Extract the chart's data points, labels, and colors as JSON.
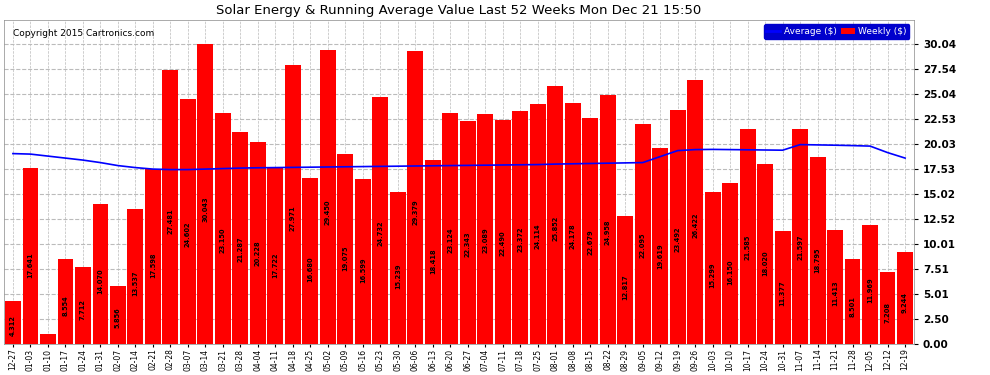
{
  "title": "Solar Energy & Running Average Value Last 52 Weeks Mon Dec 21 15:50",
  "copyright": "Copyright 2015 Cartronics.com",
  "bar_color": "#ff0000",
  "avg_line_color": "#0000ff",
  "background_color": "#ffffff",
  "plot_bg_color": "#ffffff",
  "grid_color": "#bbbbbb",
  "yticks": [
    0.0,
    2.5,
    5.01,
    7.51,
    10.01,
    12.52,
    15.02,
    17.53,
    20.03,
    22.53,
    25.04,
    27.54,
    30.04
  ],
  "categories": [
    "12-27",
    "01-03",
    "01-10",
    "01-17",
    "01-24",
    "01-31",
    "02-07",
    "02-14",
    "02-21",
    "02-28",
    "03-07",
    "03-14",
    "03-21",
    "03-28",
    "04-04",
    "04-11",
    "04-18",
    "04-25",
    "05-02",
    "05-09",
    "05-16",
    "05-23",
    "05-30",
    "06-06",
    "06-13",
    "06-20",
    "06-27",
    "07-04",
    "07-11",
    "07-18",
    "07-25",
    "08-01",
    "08-08",
    "08-15",
    "08-22",
    "08-29",
    "09-05",
    "09-12",
    "09-19",
    "09-26",
    "10-03",
    "10-10",
    "10-17",
    "10-24",
    "10-31",
    "11-07",
    "11-14",
    "11-21",
    "11-28",
    "12-05",
    "12-12",
    "12-19"
  ],
  "values": [
    4.312,
    17.641,
    1.006,
    8.554,
    7.712,
    14.07,
    5.856,
    13.537,
    17.598,
    27.481,
    24.602,
    30.043,
    23.15,
    21.287,
    20.228,
    17.722,
    27.971,
    16.68,
    29.45,
    19.075,
    16.599,
    24.732,
    15.239,
    29.379,
    18.418,
    23.124,
    22.343,
    23.089,
    22.49,
    23.372,
    24.114,
    25.852,
    24.178,
    22.679,
    24.958,
    12.817,
    22.095,
    19.619,
    23.492,
    26.422,
    15.299,
    16.15,
    21.585,
    18.02,
    11.377,
    21.597,
    18.795,
    11.413,
    8.501,
    11.969,
    7.208,
    9.244
  ],
  "avg_values": [
    19.1,
    19.05,
    18.85,
    18.65,
    18.45,
    18.2,
    17.9,
    17.7,
    17.55,
    17.5,
    17.5,
    17.55,
    17.6,
    17.65,
    17.68,
    17.7,
    17.72,
    17.74,
    17.76,
    17.78,
    17.8,
    17.82,
    17.84,
    17.86,
    17.88,
    17.9,
    17.92,
    17.94,
    17.96,
    17.98,
    18.0,
    18.05,
    18.08,
    18.11,
    18.14,
    18.17,
    18.2,
    18.8,
    19.4,
    19.5,
    19.52,
    19.5,
    19.48,
    19.46,
    19.44,
    20.0,
    19.97,
    19.94,
    19.9,
    19.85,
    19.2,
    18.65
  ],
  "legend_avg_label": "Average ($)",
  "legend_weekly_label": "Weekly ($)",
  "ylim_max": 30.04
}
